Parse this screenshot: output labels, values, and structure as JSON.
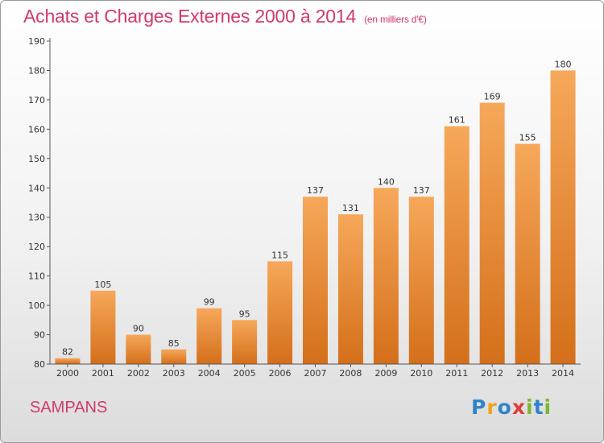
{
  "header": {
    "title": "Achats et Charges Externes 2000 à 2014",
    "unit": "(en milliers d'€)"
  },
  "footer": {
    "commune": "SAMPANS",
    "brand": "Proxiti",
    "brand_letters": [
      {
        "ch": "P",
        "color": "#2f84c9"
      },
      {
        "ch": "r",
        "color": "#f2a020"
      },
      {
        "ch": "o",
        "color": "#2f84c9"
      },
      {
        "ch": "x",
        "color": "#e23a3a"
      },
      {
        "ch": "i",
        "color": "#7ab830"
      },
      {
        "ch": "t",
        "color": "#2f84c9"
      },
      {
        "ch": "i",
        "color": "#7ab830"
      }
    ]
  },
  "colors": {
    "accent": "#d2386e",
    "bar_light": "#f6a85a",
    "bar_dark": "#d46f1a"
  },
  "chart_data": {
    "type": "bar",
    "title": "Achats et Charges Externes 2000 à 2014",
    "subtitle": "(en milliers d'€)",
    "categories": [
      "2000",
      "2001",
      "2002",
      "2003",
      "2004",
      "2005",
      "2006",
      "2007",
      "2008",
      "2009",
      "2010",
      "2011",
      "2012",
      "2013",
      "2014"
    ],
    "values": [
      82,
      105,
      90,
      85,
      99,
      95,
      115,
      137,
      131,
      140,
      137,
      161,
      169,
      155,
      180
    ],
    "xlabel": "",
    "ylabel": "",
    "ylim": [
      80,
      190
    ],
    "yticks": [
      80,
      90,
      100,
      110,
      120,
      130,
      140,
      150,
      160,
      170,
      180,
      190
    ],
    "grid": false,
    "legend": "none"
  }
}
